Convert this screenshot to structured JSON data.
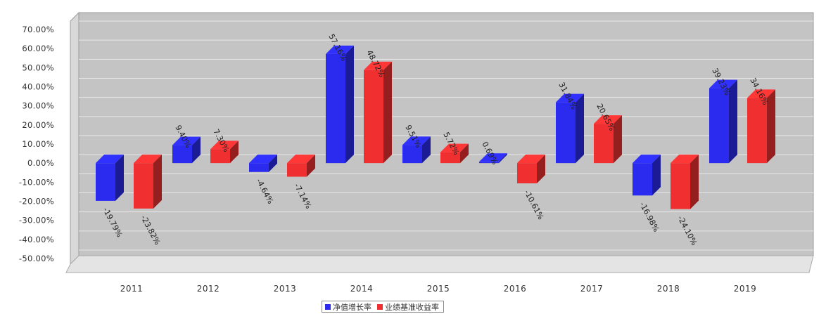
{
  "chart_data": {
    "type": "bar",
    "categories": [
      "2011",
      "2012",
      "2013",
      "2014",
      "2015",
      "2016",
      "2017",
      "2018",
      "2019"
    ],
    "series": [
      {
        "name": "净值增长率",
        "color": "#2b2bf0",
        "values": [
          -19.79,
          9.4,
          -4.64,
          57.16,
          9.51,
          0.69,
          31.84,
          -16.98,
          39.23
        ],
        "labels": [
          "-19.79%",
          "9.40%",
          "-4.64%",
          "57.16%",
          "9.51%",
          "0.69%",
          "31.84%",
          "-16.98%",
          "39.23%"
        ]
      },
      {
        "name": "业绩基准收益率",
        "color": "#f03030",
        "values": [
          -23.82,
          7.3,
          -7.14,
          48.72,
          5.72,
          -10.61,
          20.65,
          -24.1,
          34.16
        ],
        "labels": [
          "-23.82%",
          "7.30%",
          "-7.14%",
          "48.72%",
          "5.72%",
          "-10.61%",
          "20.65%",
          "-24.10%",
          "34.16%"
        ]
      }
    ],
    "y_ticks": [
      "70.00%",
      "60.00%",
      "50.00%",
      "40.00%",
      "30.00%",
      "20.00%",
      "10.00%",
      "0.00%",
      "-10.00%",
      "-20.00%",
      "-30.00%",
      "-40.00%",
      "-50.00%"
    ],
    "ylim": [
      -50,
      70
    ],
    "grid": true,
    "style": "3d",
    "legend_position": "bottom-center"
  }
}
